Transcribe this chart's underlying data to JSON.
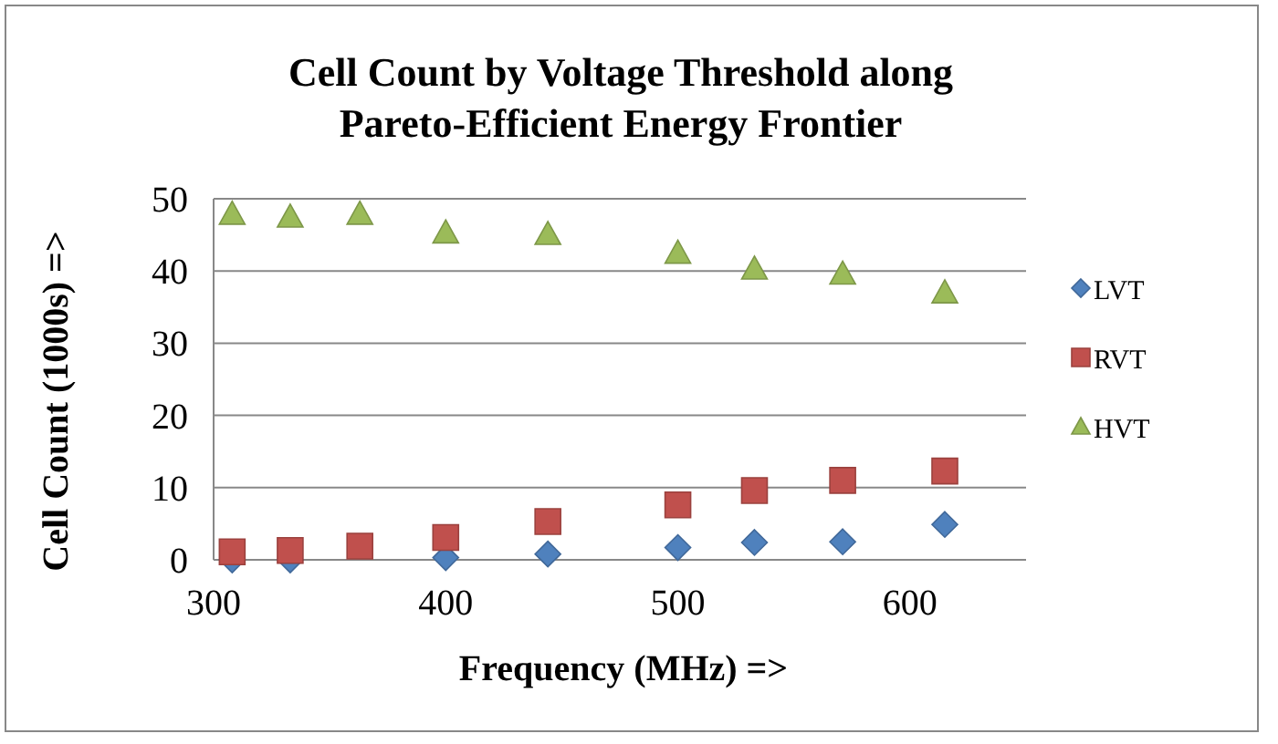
{
  "chart_data": {
    "type": "scatter",
    "title": "Cell Count by Voltage Threshold along Pareto-Efficient Energy Frontier",
    "xlabel": "Frequency (MHz) =>",
    "ylabel": "Cell Count (1000s) =>",
    "x": [
      308,
      333,
      363,
      400,
      444,
      500,
      533,
      571,
      615
    ],
    "series": [
      {
        "name": "LVT",
        "color": "#4f81bd",
        "marker": "diamond",
        "values": [
          0,
          0,
          null,
          0.3,
          0.8,
          1.7,
          2.4,
          2.5,
          4.9
        ]
      },
      {
        "name": "RVT",
        "color": "#c0504d",
        "marker": "square",
        "values": [
          1.1,
          1.3,
          1.9,
          3.1,
          5.3,
          7.6,
          9.6,
          11.0,
          12.3
        ]
      },
      {
        "name": "HVT",
        "color": "#9bbb59",
        "marker": "triangle",
        "values": [
          47.9,
          47.5,
          47.9,
          45.3,
          45.1,
          42.5,
          40.3,
          39.6,
          37.0
        ]
      }
    ],
    "xlim": [
      300,
      650
    ],
    "xticks": [
      300,
      400,
      500,
      600
    ],
    "ylim": [
      0,
      50
    ],
    "yticks": [
      0,
      10,
      20,
      30,
      40,
      50
    ],
    "grid": "y",
    "legend": "right"
  }
}
